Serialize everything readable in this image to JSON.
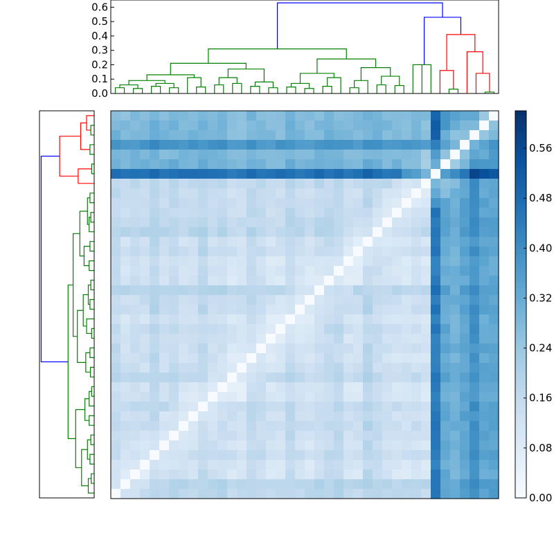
{
  "chart_data": [
    {
      "type": "dendrogram",
      "orientation": "top",
      "ylim": [
        0,
        0.65
      ],
      "yticks": [
        "0.0",
        "0.1",
        "0.2",
        "0.3",
        "0.4",
        "0.5",
        "0.6"
      ],
      "leaf_count": 40,
      "colors": {
        "main": "#008000",
        "outlier": "#ff0000",
        "root": "#0000ff"
      },
      "root_height": 0.63,
      "outlier_cluster_height": 0.41,
      "main_cluster_height": 0.31
    },
    {
      "type": "dendrogram",
      "orientation": "left",
      "leaf_count": 40,
      "colors": {
        "main": "#008000",
        "outlier": "#ff0000",
        "root": "#0000ff"
      }
    },
    {
      "type": "heatmap",
      "rows": 40,
      "cols": 40,
      "colormap": "Blues",
      "vmin": 0.0,
      "vmax": 0.62,
      "diagonal": 0.0,
      "description_of_values": "pairwise distances; main cluster 0.05-0.28, outlier columns 0.30-0.62"
    },
    {
      "type": "colorbar",
      "colormap": "Blues",
      "range": [
        0.0,
        0.62
      ],
      "ticks": [
        "0.00",
        "0.08",
        "0.16",
        "0.24",
        "0.32",
        "0.40",
        "0.48",
        "0.56"
      ]
    }
  ]
}
